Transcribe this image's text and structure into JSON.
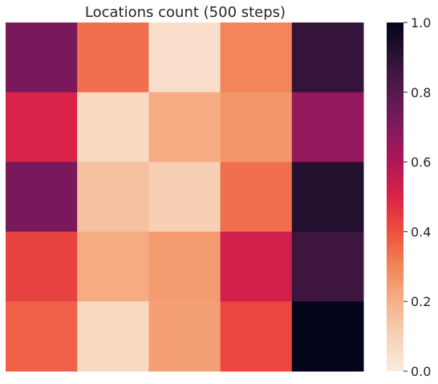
{
  "chart_data": {
    "type": "heatmap",
    "title": "Locations count (500 steps)",
    "xlabel": "",
    "ylabel": "",
    "rows": 5,
    "cols": 5,
    "values": [
      [
        0.72,
        0.34,
        0.05,
        0.3,
        0.88
      ],
      [
        0.5,
        0.07,
        0.21,
        0.26,
        0.66
      ],
      [
        0.72,
        0.15,
        0.11,
        0.34,
        0.92
      ],
      [
        0.43,
        0.21,
        0.25,
        0.52,
        0.86
      ],
      [
        0.37,
        0.07,
        0.24,
        0.42,
        1.0
      ]
    ],
    "colorbar": {
      "vmin": 0.0,
      "vmax": 1.0,
      "ticks": [
        0.0,
        0.2,
        0.4,
        0.6,
        0.8,
        1.0
      ],
      "tick_labels": [
        "0.0",
        "0.2",
        "0.4",
        "0.6",
        "0.8",
        "1.0"
      ]
    },
    "colormap": "rocket_r",
    "grid": false
  }
}
